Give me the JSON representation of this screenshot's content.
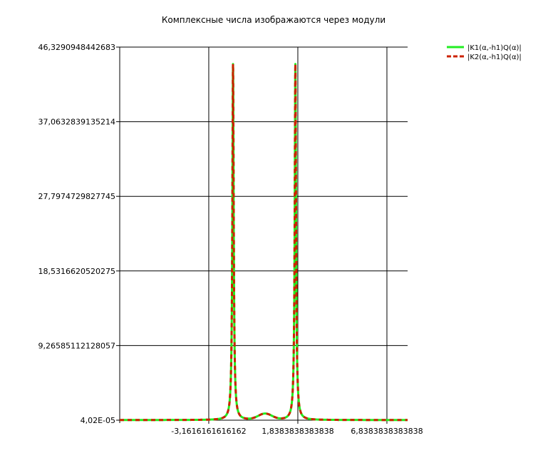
{
  "chart_data": {
    "type": "line",
    "title": "Комплексные числа изображаются через модули",
    "xlabel": "",
    "ylabel": "",
    "xlim": [
      -8.16,
      8.0
    ],
    "ylim": [
      4.02e-05,
      46.3290948442683
    ],
    "x_ticks": [
      -3.1616161616162,
      1.8383838383838,
      6.8383838383838
    ],
    "x_tick_labels": [
      "-3,1616161616162",
      "1,8383838383838",
      "6,8383838383838"
    ],
    "y_ticks": [
      4.02e-05,
      9.26585112128057,
      18.5316620520275,
      27.7974729827745,
      37.0632839135214,
      46.3290948442683
    ],
    "y_tick_labels": [
      "4,02E-05",
      "9,26585112128057",
      "18,5316620520275",
      "27,7974729827745",
      "37,0632839135214",
      "46,3290948442683"
    ],
    "grid": true,
    "legend_position": "top-right",
    "peaks": {
      "left_x": -1.8,
      "right_x": 1.7,
      "height": 44.2,
      "hump_x": 0.0,
      "hump_height": 0.75
    },
    "series": [
      {
        "name": "|K1(α,-h1)Q(α)|",
        "color": "#22ee22",
        "style": "solid"
      },
      {
        "name": "|K2(α,-h1)Q(α)|",
        "color": "#cc2200",
        "style": "dashed"
      }
    ]
  }
}
